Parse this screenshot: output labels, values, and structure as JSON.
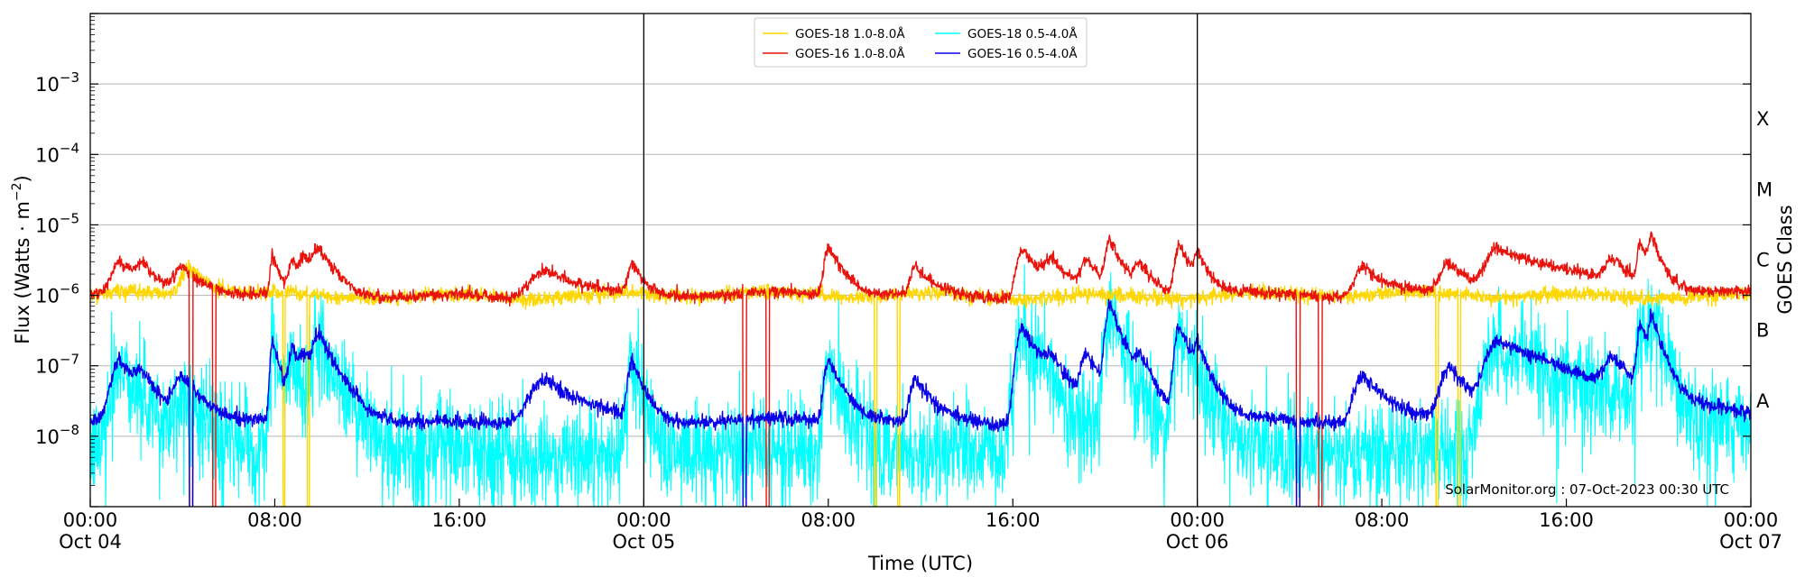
{
  "chart_data": {
    "type": "line",
    "title": "",
    "xlabel": "Time (UTC)",
    "ylabel": "Flux (Watts · m⁻²)",
    "ylabel_base": "Flux (Watts · m",
    "ylabel_exp": "−2",
    "ylabel_tail": ")",
    "y2label": "GOES Class",
    "yscale": "log",
    "ylim": [
      1e-09,
      0.01
    ],
    "xlim_hours": [
      0,
      72
    ],
    "grid": "horizontal",
    "legend_position": "top-center",
    "x_ticks": [
      {
        "h": 0,
        "time": "00:00",
        "date": "Oct 04"
      },
      {
        "h": 8,
        "time": "08:00",
        "date": ""
      },
      {
        "h": 16,
        "time": "16:00",
        "date": ""
      },
      {
        "h": 24,
        "time": "00:00",
        "date": "Oct 05"
      },
      {
        "h": 32,
        "time": "08:00",
        "date": ""
      },
      {
        "h": 40,
        "time": "16:00",
        "date": ""
      },
      {
        "h": 48,
        "time": "00:00",
        "date": "Oct 06"
      },
      {
        "h": 56,
        "time": "08:00",
        "date": ""
      },
      {
        "h": 64,
        "time": "16:00",
        "date": ""
      },
      {
        "h": 72,
        "time": "00:00",
        "date": "Oct 07"
      }
    ],
    "y_ticks": [
      {
        "exp": -8,
        "base": "10",
        "sup": "−8"
      },
      {
        "exp": -7,
        "base": "10",
        "sup": "−7"
      },
      {
        "exp": -6,
        "base": "10",
        "sup": "−6"
      },
      {
        "exp": -5,
        "base": "10",
        "sup": "−5"
      },
      {
        "exp": -4,
        "base": "10",
        "sup": "−4"
      },
      {
        "exp": -3,
        "base": "10",
        "sup": "−3"
      }
    ],
    "goes_classes": [
      {
        "label": "A",
        "exp": -7.5
      },
      {
        "label": "B",
        "exp": -6.5
      },
      {
        "label": "C",
        "exp": -5.5
      },
      {
        "label": "M",
        "exp": -4.5
      },
      {
        "label": "X",
        "exp": -3.5
      }
    ],
    "day_boundaries_hours": [
      24,
      48
    ],
    "series": [
      {
        "name": "GOES-18 1.0-8.0Å",
        "color": "#ffd700",
        "kind": "long_yellow",
        "base": 1e-06,
        "peaks": [
          [
            4.3,
            1.5e-06,
            0.3,
            0.9
          ]
        ],
        "dropouts": [
          [
            8.35,
            8.45
          ],
          [
            9.4,
            9.5
          ],
          [
            34.0,
            34.1
          ],
          [
            35.0,
            35.1
          ],
          [
            58.35,
            58.45
          ],
          [
            59.3,
            59.4
          ]
        ],
        "wiggle": 0.05
      },
      {
        "name": "GOES-16 1.0-8.0Å",
        "color": "#e8130c",
        "kind": "long_red",
        "base": 1e-06,
        "peaks": [
          [
            1.3,
            1.9e-06,
            0.3,
            0.8
          ],
          [
            2.2,
            1.3e-06,
            0.2,
            0.6
          ],
          [
            4.0,
            1.5e-06,
            0.3,
            0.8
          ],
          [
            7.9,
            2.6e-06,
            0.08,
            0.3
          ],
          [
            8.8,
            2e-06,
            0.15,
            0.5
          ],
          [
            9.3,
            1.7e-06,
            0.15,
            0.5
          ],
          [
            9.9,
            3e-06,
            0.2,
            0.7
          ],
          [
            19.8,
            1.4e-06,
            0.6,
            1.3
          ],
          [
            23.5,
            1.7e-06,
            0.15,
            0.4
          ],
          [
            32.0,
            3.8e-06,
            0.15,
            0.6
          ],
          [
            35.8,
            1.6e-06,
            0.2,
            0.6
          ],
          [
            40.4,
            3.6e-06,
            0.2,
            0.8
          ],
          [
            41.7,
            1.6e-06,
            0.3,
            0.8
          ],
          [
            43.2,
            2e-06,
            0.2,
            0.6
          ],
          [
            44.2,
            4.8e-06,
            0.15,
            0.5
          ],
          [
            45.5,
            1.6e-06,
            0.2,
            0.6
          ],
          [
            47.2,
            4e-06,
            0.15,
            0.6
          ],
          [
            48.0,
            2.4e-06,
            0.1,
            0.4
          ],
          [
            55.2,
            1.6e-06,
            0.3,
            0.8
          ],
          [
            58.9,
            1.9e-06,
            0.3,
            0.9
          ],
          [
            61.0,
            3.5e-06,
            0.4,
            3.0
          ],
          [
            66.0,
            1.6e-06,
            0.3,
            0.8
          ],
          [
            67.2,
            4e-06,
            0.1,
            0.4
          ],
          [
            67.7,
            4.2e-06,
            0.1,
            0.4
          ]
        ],
        "dropouts": [
          [
            4.3,
            4.45
          ],
          [
            5.3,
            5.45
          ],
          [
            28.3,
            28.45
          ],
          [
            29.3,
            29.45
          ],
          [
            52.3,
            52.45
          ],
          [
            53.25,
            53.4
          ]
        ],
        "wiggle": 0.04
      },
      {
        "name": "GOES-18 0.5-4.0Å",
        "color": "#00ffff",
        "kind": "short_cyan",
        "base": 6e-09,
        "peaks": [
          [
            1.3,
            1e-07,
            0.3,
            0.8
          ],
          [
            4.0,
            3e-08,
            0.3,
            0.8
          ],
          [
            7.9,
            2e-07,
            0.08,
            0.3
          ],
          [
            8.8,
            1e-07,
            0.15,
            0.5
          ],
          [
            9.9,
            2e-07,
            0.2,
            0.7
          ],
          [
            23.5,
            9e-08,
            0.15,
            0.4
          ],
          [
            32.0,
            8e-08,
            0.15,
            0.6
          ],
          [
            40.4,
            3e-07,
            0.2,
            0.8
          ],
          [
            44.2,
            6e-07,
            0.15,
            0.5
          ],
          [
            47.2,
            3e-07,
            0.15,
            0.6
          ],
          [
            61.0,
            1.8e-07,
            0.4,
            3.0
          ],
          [
            67.2,
            3.5e-07,
            0.1,
            0.4
          ],
          [
            67.7,
            3.5e-07,
            0.1,
            0.4
          ]
        ],
        "dropouts": [],
        "wiggle": 0.35
      },
      {
        "name": "GOES-16 0.5-4.0Å",
        "color": "#0a00e6",
        "kind": "short_blue",
        "base": 1.6e-08,
        "peaks": [
          [
            1.3,
            1e-07,
            0.3,
            0.8
          ],
          [
            2.2,
            4e-08,
            0.2,
            0.6
          ],
          [
            4.0,
            5e-08,
            0.3,
            0.8
          ],
          [
            7.9,
            2.2e-07,
            0.08,
            0.3
          ],
          [
            8.8,
            1.5e-07,
            0.15,
            0.5
          ],
          [
            9.3,
            8e-08,
            0.15,
            0.5
          ],
          [
            9.9,
            2.3e-07,
            0.2,
            0.7
          ],
          [
            19.8,
            5e-08,
            0.6,
            1.3
          ],
          [
            23.5,
            1e-07,
            0.15,
            0.4
          ],
          [
            32.0,
            1e-07,
            0.15,
            0.6
          ],
          [
            35.8,
            5e-08,
            0.2,
            0.6
          ],
          [
            40.4,
            3.3e-07,
            0.2,
            0.8
          ],
          [
            41.7,
            6e-08,
            0.3,
            0.8
          ],
          [
            43.2,
            1.2e-07,
            0.2,
            0.6
          ],
          [
            44.2,
            6.8e-07,
            0.15,
            0.5
          ],
          [
            45.5,
            9e-08,
            0.2,
            0.6
          ],
          [
            47.2,
            3.3e-07,
            0.15,
            0.6
          ],
          [
            48.0,
            1.2e-07,
            0.1,
            0.4
          ],
          [
            55.2,
            6e-08,
            0.3,
            0.8
          ],
          [
            58.9,
            8e-08,
            0.3,
            0.9
          ],
          [
            61.0,
            2e-07,
            0.4,
            3.0
          ],
          [
            66.0,
            8e-08,
            0.3,
            0.8
          ],
          [
            67.2,
            3.5e-07,
            0.1,
            0.4
          ],
          [
            67.7,
            3.8e-07,
            0.1,
            0.4
          ]
        ],
        "dropouts": [
          [
            4.3,
            4.45
          ],
          [
            28.3,
            28.45
          ],
          [
            52.3,
            52.45
          ]
        ],
        "wiggle": 0.05
      }
    ],
    "credit": "SolarMonitor.org : 07-Oct-2023 00:30 UTC"
  }
}
